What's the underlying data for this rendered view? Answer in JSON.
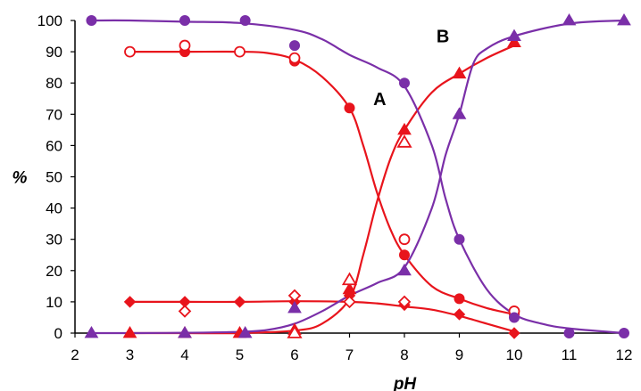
{
  "chart_data": {
    "type": "scatter",
    "xlabel": "pH",
    "ylabel": "%",
    "xlim": [
      2,
      12
    ],
    "ylim": [
      0,
      100
    ],
    "xticks": [
      "2",
      "3",
      "4",
      "5",
      "6",
      "7",
      "8",
      "9",
      "10",
      "11",
      "12"
    ],
    "yticks": [
      "0",
      "10",
      "20",
      "30",
      "40",
      "50",
      "60",
      "70",
      "80",
      "90",
      "100"
    ],
    "grid": false,
    "annotations": [
      {
        "text": "A",
        "x": 7.55,
        "y": 75
      },
      {
        "text": "B",
        "x": 8.7,
        "y": 95
      }
    ],
    "colors": {
      "red": "#e8141c",
      "purple": "#7a2fa8"
    },
    "curves": [
      {
        "id": "red-circle-curve",
        "color": "#e8141c",
        "points": [
          [
            3,
            90
          ],
          [
            4,
            90
          ],
          [
            5,
            90
          ],
          [
            5.5,
            89.6
          ],
          [
            6,
            87.5
          ],
          [
            6.5,
            82
          ],
          [
            7,
            72
          ],
          [
            7.25,
            60
          ],
          [
            7.5,
            45
          ],
          [
            7.75,
            33
          ],
          [
            8,
            25
          ],
          [
            8.5,
            15
          ],
          [
            9,
            11
          ],
          [
            9.5,
            8
          ],
          [
            10,
            6
          ]
        ]
      },
      {
        "id": "red-triangle-curve",
        "color": "#e8141c",
        "points": [
          [
            3,
            0
          ],
          [
            4,
            0
          ],
          [
            5,
            0
          ],
          [
            6,
            0.8
          ],
          [
            6.5,
            3
          ],
          [
            7,
            11
          ],
          [
            7.25,
            25
          ],
          [
            7.5,
            42
          ],
          [
            7.75,
            56
          ],
          [
            8,
            65
          ],
          [
            8.5,
            77
          ],
          [
            9,
            83
          ],
          [
            9.5,
            88
          ],
          [
            10,
            92
          ]
        ]
      },
      {
        "id": "red-diamond-curve",
        "color": "#e8141c",
        "points": [
          [
            3,
            10
          ],
          [
            4,
            10
          ],
          [
            5,
            10
          ],
          [
            6,
            10.2
          ],
          [
            7,
            10
          ],
          [
            7.5,
            9.5
          ],
          [
            8,
            8.5
          ],
          [
            8.5,
            7.5
          ],
          [
            9,
            5.5
          ],
          [
            9.5,
            3
          ],
          [
            10,
            0.5
          ]
        ]
      },
      {
        "id": "purple-circle-curve",
        "color": "#7a2fa8",
        "points": [
          [
            2.3,
            100
          ],
          [
            3,
            100
          ],
          [
            4,
            99.6
          ],
          [
            5,
            99.2
          ],
          [
            6,
            97
          ],
          [
            6.5,
            94
          ],
          [
            7,
            89
          ],
          [
            7.5,
            85
          ],
          [
            8,
            79
          ],
          [
            8.5,
            60
          ],
          [
            8.75,
            43
          ],
          [
            9,
            30
          ],
          [
            9.5,
            14
          ],
          [
            10,
            6
          ],
          [
            10.5,
            3
          ],
          [
            11,
            1.5
          ],
          [
            12,
            0
          ]
        ]
      },
      {
        "id": "purple-triangle-curve",
        "color": "#7a2fa8",
        "points": [
          [
            2.3,
            0
          ],
          [
            3,
            0
          ],
          [
            4,
            0.1
          ],
          [
            5,
            0.4
          ],
          [
            5.5,
            1
          ],
          [
            6,
            3
          ],
          [
            6.5,
            7
          ],
          [
            7,
            12
          ],
          [
            7.5,
            16
          ],
          [
            8,
            21
          ],
          [
            8.5,
            40
          ],
          [
            8.75,
            57
          ],
          [
            9,
            70
          ],
          [
            9.25,
            86
          ],
          [
            9.5,
            91
          ],
          [
            10,
            95
          ],
          [
            11,
            99
          ],
          [
            12,
            100
          ]
        ]
      }
    ],
    "series": [
      {
        "id": "red-filled-circles",
        "color": "#e8141c",
        "marker": "circle",
        "filled": true,
        "x": [
          3,
          4,
          5,
          6,
          7,
          8,
          9,
          10
        ],
        "y": [
          90,
          90,
          90,
          87,
          72,
          25,
          11,
          6
        ]
      },
      {
        "id": "red-open-circles",
        "color": "#e8141c",
        "marker": "circle",
        "filled": false,
        "x": [
          3,
          4,
          5,
          6,
          8,
          10
        ],
        "y": [
          90,
          92,
          90,
          88,
          30,
          7
        ]
      },
      {
        "id": "red-filled-triangles",
        "color": "#e8141c",
        "marker": "triangle",
        "filled": true,
        "x": [
          3,
          4,
          5,
          6,
          7,
          8,
          9,
          10
        ],
        "y": [
          0,
          0,
          0,
          1,
          14,
          65,
          83,
          93
        ]
      },
      {
        "id": "red-open-triangles",
        "color": "#e8141c",
        "marker": "triangle",
        "filled": false,
        "x": [
          6,
          7,
          8
        ],
        "y": [
          0,
          17,
          61
        ]
      },
      {
        "id": "red-filled-diamonds",
        "color": "#e8141c",
        "marker": "diamond",
        "filled": true,
        "x": [
          3,
          4,
          5,
          6,
          7,
          8,
          9,
          10
        ],
        "y": [
          10,
          10,
          10,
          10,
          12,
          9,
          6,
          0
        ]
      },
      {
        "id": "red-open-diamonds",
        "color": "#e8141c",
        "marker": "diamond",
        "filled": false,
        "x": [
          4,
          6,
          7,
          8
        ],
        "y": [
          7,
          12,
          10,
          10
        ]
      },
      {
        "id": "purple-circles",
        "color": "#7a2fa8",
        "marker": "circle",
        "filled": true,
        "x": [
          2.3,
          4,
          5.1,
          6,
          8,
          9,
          10,
          11,
          12
        ],
        "y": [
          100,
          100,
          100,
          92,
          80,
          30,
          5,
          0,
          0
        ]
      },
      {
        "id": "purple-triangles",
        "color": "#7a2fa8",
        "marker": "triangle",
        "filled": true,
        "x": [
          2.3,
          4,
          5.1,
          6,
          8,
          9,
          10,
          11,
          12
        ],
        "y": [
          0,
          0,
          0,
          8,
          20,
          70,
          95,
          100,
          100
        ]
      }
    ]
  }
}
